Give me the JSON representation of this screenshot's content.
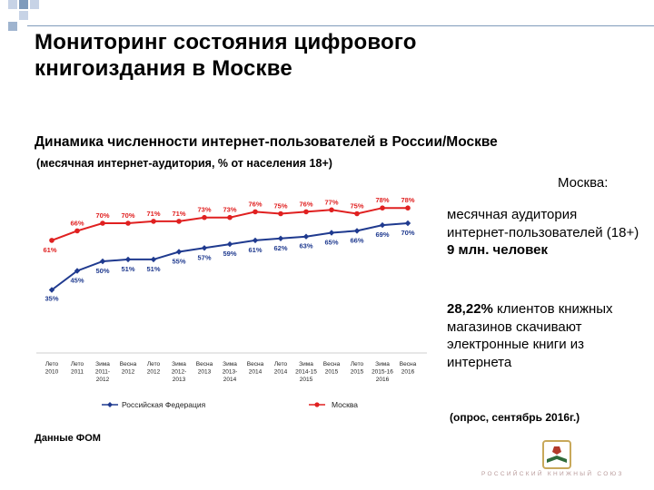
{
  "slide": {
    "title_line1": "Мониторинг состояния цифрового",
    "title_line2": "книгоиздания в Москве",
    "source": "Данные ФОМ"
  },
  "sidebar": {
    "heading": "Москва:",
    "p1_text": "месячная аудитория интернет-пользователей (18+)",
    "p1_bold": "9 млн. человек",
    "p2_bold": "28,22%",
    "p2_text": "клиентов книжных магазинов скачивают электронные книги из интернета",
    "note": "(опрос, сентябрь 2016г.)"
  },
  "logo": {
    "text": "РОССИЙСКИЙ КНИЖНЫЙ СОЮЗ",
    "colors": {
      "frame": "#c8a85a",
      "book": "#2f6b3a",
      "accent": "#b33a2a"
    }
  },
  "chart_data": {
    "type": "line",
    "title": "Динамика численности интернет-пользователей в России/Москве",
    "subtitle": "(месячная интернет-аудитория, % от населения 18+)",
    "categories": [
      [
        "Лето",
        "2010"
      ],
      [
        "Лето",
        "2011"
      ],
      [
        "Зима",
        "2011-",
        "2012"
      ],
      [
        "Весна",
        "2012"
      ],
      [
        "Лето",
        "2012"
      ],
      [
        "Зима",
        "2012-",
        "2013"
      ],
      [
        "Весна",
        "2013"
      ],
      [
        "Зима",
        "2013-",
        "2014"
      ],
      [
        "Весна",
        "2014"
      ],
      [
        "Лето",
        "2014"
      ],
      [
        "Зима",
        "2014-15",
        "2015"
      ],
      [
        "Весна",
        "2015"
      ],
      [
        "Лето",
        "2015"
      ],
      [
        "Зима",
        "2015-16",
        "2016"
      ],
      [
        "Весна",
        "2016"
      ]
    ],
    "series": [
      {
        "name": "Российская Федерация",
        "color": "#1f3a8f",
        "marker": "diamond",
        "values": [
          35,
          45,
          50,
          51,
          51,
          55,
          57,
          59,
          61,
          62,
          63,
          65,
          66,
          69,
          70
        ],
        "labels": [
          "35%",
          "45%",
          "50%",
          "51%",
          "51%",
          "55%",
          "57%",
          "59%",
          "61%",
          "62%",
          "63%",
          "65%",
          "66%",
          "69%",
          "70%"
        ]
      },
      {
        "name": "Москва",
        "color": "#e02020",
        "marker": "circle",
        "values": [
          61,
          66,
          70,
          70,
          71,
          71,
          73,
          73,
          76,
          75,
          76,
          77,
          75,
          78,
          78
        ],
        "labels": [
          "61%",
          "66%",
          "70%",
          "70%",
          "71%",
          "71%",
          "73%",
          "73%",
          "76%",
          "75%",
          "76%",
          "77%",
          "75%",
          "78%",
          "78%"
        ]
      }
    ],
    "legend": "bottom"
  }
}
